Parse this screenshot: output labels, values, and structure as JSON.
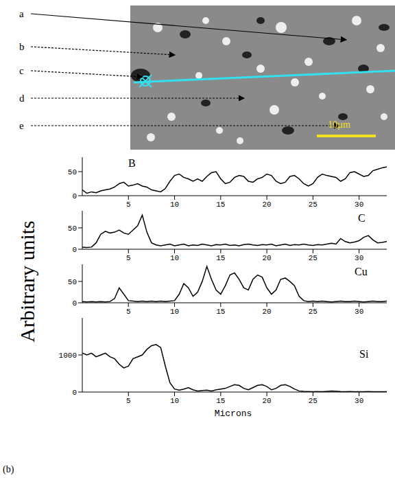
{
  "figure": {
    "panel_label": "(b)",
    "ylabel": "Arbitrary units",
    "xlabel": "Microns",
    "image": {
      "labels": [
        "a",
        "b",
        "c",
        "d",
        "e"
      ],
      "scale_bar": "10µm"
    }
  },
  "chart_data": [
    {
      "type": "line",
      "title": "B",
      "color": "#000000",
      "xlim": [
        0,
        33
      ],
      "xticks": [
        5,
        10,
        15,
        20,
        25,
        30
      ],
      "ylim": [
        0,
        80
      ],
      "yticks": [
        0,
        50
      ],
      "x": [
        0,
        0.5,
        1,
        1.5,
        2,
        2.5,
        3,
        3.5,
        4,
        4.5,
        5,
        5.5,
        6,
        6.5,
        7,
        7.5,
        8,
        8.5,
        9,
        9.5,
        10,
        10.5,
        11,
        11.5,
        12,
        12.5,
        13,
        13.5,
        14,
        14.5,
        15,
        15.5,
        16,
        16.5,
        17,
        17.5,
        18,
        18.5,
        19,
        19.5,
        20,
        20.5,
        21,
        21.5,
        22,
        22.5,
        23,
        23.5,
        24,
        24.5,
        25,
        25.5,
        26,
        26.5,
        27,
        27.5,
        28,
        28.5,
        29,
        29.5,
        30,
        30.5,
        31,
        31.5,
        32,
        32.5,
        33
      ],
      "values": [
        12,
        5,
        8,
        6,
        10,
        12,
        14,
        18,
        25,
        28,
        20,
        22,
        25,
        20,
        18,
        12,
        10,
        8,
        15,
        30,
        42,
        45,
        38,
        35,
        30,
        35,
        30,
        40,
        48,
        50,
        35,
        25,
        28,
        38,
        42,
        40,
        30,
        28,
        35,
        38,
        45,
        42,
        30,
        25,
        28,
        40,
        42,
        35,
        25,
        20,
        25,
        38,
        45,
        42,
        40,
        38,
        30,
        35,
        48,
        50,
        45,
        40,
        42,
        52,
        55,
        58,
        60
      ]
    },
    {
      "type": "line",
      "title": "C",
      "color": "#000000",
      "xlim": [
        0,
        33
      ],
      "xticks": [
        5,
        10,
        15,
        20,
        25,
        30
      ],
      "ylim": [
        0,
        90
      ],
      "yticks": [
        0,
        50
      ],
      "x": [
        0,
        0.5,
        1,
        1.5,
        2,
        2.5,
        3,
        3.5,
        4,
        4.5,
        5,
        5.5,
        6,
        6.5,
        7,
        7.5,
        8,
        8.5,
        9,
        9.5,
        10,
        10.5,
        11,
        11.5,
        12,
        12.5,
        13,
        13.5,
        14,
        14.5,
        15,
        15.5,
        16,
        16.5,
        17,
        17.5,
        18,
        18.5,
        19,
        19.5,
        20,
        20.5,
        21,
        21.5,
        22,
        22.5,
        23,
        23.5,
        24,
        24.5,
        25,
        25.5,
        26,
        26.5,
        27,
        27.5,
        28,
        28.5,
        29,
        29.5,
        30,
        30.5,
        31,
        31.5,
        32,
        32.5,
        33
      ],
      "values": [
        5,
        4,
        5,
        15,
        35,
        42,
        38,
        40,
        45,
        38,
        35,
        45,
        55,
        80,
        40,
        15,
        10,
        8,
        10,
        12,
        8,
        10,
        12,
        8,
        10,
        9,
        12,
        10,
        8,
        11,
        10,
        12,
        9,
        10,
        8,
        11,
        12,
        10,
        9,
        11,
        10,
        12,
        8,
        10,
        12,
        9,
        11,
        10,
        12,
        10,
        9,
        11,
        10,
        12,
        14,
        12,
        25,
        18,
        15,
        17,
        20,
        28,
        32,
        22,
        15,
        16,
        18
      ]
    },
    {
      "type": "line",
      "title": "Cu",
      "color": "#000000",
      "xlim": [
        0,
        33
      ],
      "xticks": [
        5,
        10,
        15,
        20,
        25,
        30
      ],
      "ylim": [
        0,
        90
      ],
      "yticks": [
        0,
        50
      ],
      "x": [
        0,
        0.5,
        1,
        1.5,
        2,
        2.5,
        3,
        3.5,
        4,
        4.5,
        5,
        5.5,
        6,
        6.5,
        7,
        7.5,
        8,
        8.5,
        9,
        9.5,
        10,
        10.5,
        11,
        11.5,
        12,
        12.5,
        13,
        13.5,
        14,
        14.5,
        15,
        15.5,
        16,
        16.5,
        17,
        17.5,
        18,
        18.5,
        19,
        19.5,
        20,
        20.5,
        21,
        21.5,
        22,
        22.5,
        23,
        23.5,
        24,
        24.5,
        25,
        25.5,
        26,
        26.5,
        27,
        27.5,
        28,
        28.5,
        29,
        29.5,
        30,
        30.5,
        31,
        31.5,
        32,
        32.5,
        33
      ],
      "values": [
        3,
        2,
        3,
        2,
        3,
        2,
        3,
        10,
        35,
        20,
        5,
        4,
        3,
        4,
        3,
        4,
        3,
        4,
        3,
        4,
        5,
        20,
        45,
        35,
        15,
        25,
        50,
        85,
        55,
        30,
        20,
        40,
        65,
        70,
        55,
        35,
        30,
        55,
        65,
        60,
        35,
        20,
        30,
        55,
        58,
        50,
        40,
        15,
        5,
        3,
        4,
        3,
        4,
        3,
        2,
        3,
        4,
        3,
        3,
        4,
        3,
        2,
        3,
        4,
        3,
        3,
        4
      ]
    },
    {
      "type": "line",
      "title": "Si",
      "color": "#000000",
      "xlim": [
        0,
        33
      ],
      "xticks": [
        5,
        10,
        15,
        20,
        25,
        30
      ],
      "ylim": [
        0,
        2000
      ],
      "yticks": [
        0,
        1000
      ],
      "x": [
        0,
        0.5,
        1,
        1.5,
        2,
        2.5,
        3,
        3.5,
        4,
        4.5,
        5,
        5.5,
        6,
        6.5,
        7,
        7.5,
        8,
        8.5,
        9,
        9.5,
        10,
        10.5,
        11,
        11.5,
        12,
        12.5,
        13,
        13.5,
        14,
        14.5,
        15,
        15.5,
        16,
        16.5,
        17,
        17.5,
        18,
        18.5,
        19,
        19.5,
        20,
        20.5,
        21,
        21.5,
        22,
        22.5,
        23,
        23.5,
        24,
        24.5,
        25,
        25.5,
        26,
        26.5,
        27,
        27.5,
        28,
        28.5,
        29,
        29.5,
        30,
        30.5,
        31,
        31.5,
        32,
        32.5,
        33
      ],
      "values": [
        1050,
        1000,
        1050,
        950,
        1000,
        1050,
        950,
        900,
        750,
        650,
        700,
        900,
        950,
        1000,
        1150,
        1250,
        1280,
        1200,
        700,
        250,
        80,
        50,
        80,
        120,
        60,
        30,
        40,
        50,
        30,
        60,
        80,
        100,
        150,
        200,
        180,
        100,
        60,
        120,
        180,
        200,
        150,
        60,
        100,
        180,
        200,
        150,
        80,
        30,
        20,
        15,
        10,
        15,
        10,
        20,
        30,
        25,
        15,
        10,
        15,
        10,
        8,
        10,
        12,
        8,
        10,
        8,
        10
      ]
    }
  ]
}
